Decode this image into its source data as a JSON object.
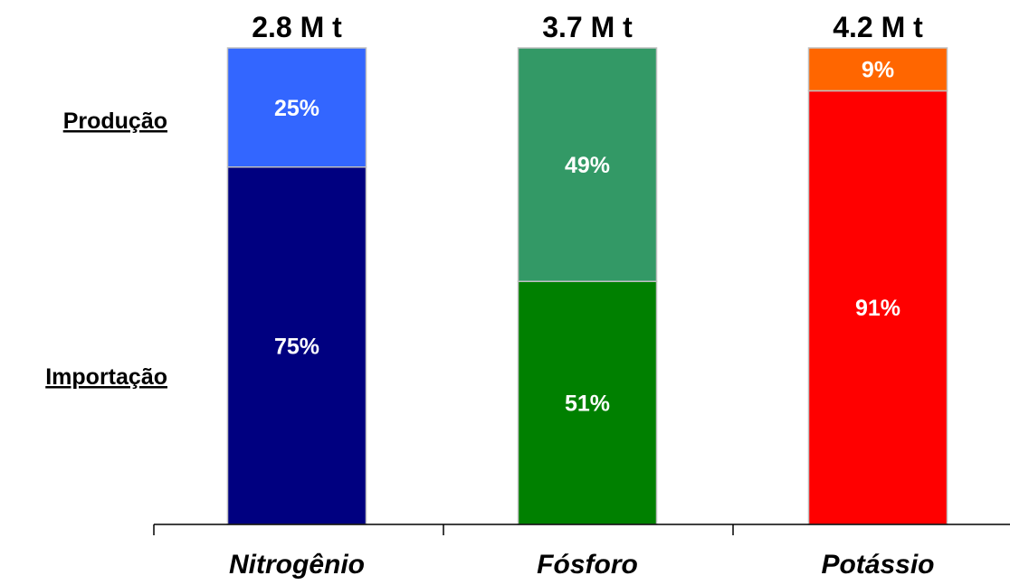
{
  "chart_data": {
    "type": "bar",
    "stacked": true,
    "percent_stacked": true,
    "categories": [
      "Nitrogênio",
      "Fósforo",
      "Potássio"
    ],
    "totals": [
      "2.8 M t",
      "3.7 M t",
      "4.2 M t"
    ],
    "series": [
      {
        "name": "Importação",
        "values": [
          75,
          51,
          91
        ],
        "labels": [
          "75%",
          "51%",
          "91%"
        ],
        "colors": [
          "#000080",
          "#008000",
          "#ff0000"
        ]
      },
      {
        "name": "Produção",
        "values": [
          25,
          49,
          9
        ],
        "labels": [
          "25%",
          "49%",
          "9%"
        ],
        "colors": [
          "#3366ff",
          "#339966",
          "#ff6600"
        ]
      }
    ],
    "ylim": [
      0,
      100
    ],
    "grid": false,
    "legend": "left-side row labels"
  }
}
